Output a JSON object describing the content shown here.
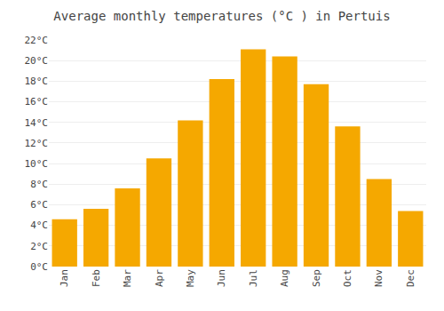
{
  "chart_data": {
    "type": "bar",
    "title": "Average monthly temperatures (°C ) in Pertuis",
    "categories": [
      "Jan",
      "Feb",
      "Mar",
      "Apr",
      "May",
      "Jun",
      "Jul",
      "Aug",
      "Sep",
      "Oct",
      "Nov",
      "Dec"
    ],
    "values": [
      4.6,
      5.6,
      7.6,
      10.5,
      14.2,
      18.2,
      21.1,
      20.4,
      17.7,
      13.6,
      8.5,
      5.4
    ],
    "color": "#F5A800",
    "ylim": [
      0,
      22
    ],
    "yticks": [
      {
        "value": 0,
        "label": "0°C"
      },
      {
        "value": 2,
        "label": "2°C"
      },
      {
        "value": 4,
        "label": "4°C"
      },
      {
        "value": 6,
        "label": "6°C"
      },
      {
        "value": 8,
        "label": "8°C"
      },
      {
        "value": 10,
        "label": "10°C"
      },
      {
        "value": 12,
        "label": "12°C"
      },
      {
        "value": 14,
        "label": "14°C"
      },
      {
        "value": 16,
        "label": "16°C"
      },
      {
        "value": 18,
        "label": "18°C"
      },
      {
        "value": 20,
        "label": "20°C"
      },
      {
        "value": 22,
        "label": "22°C"
      }
    ],
    "grid": true
  }
}
